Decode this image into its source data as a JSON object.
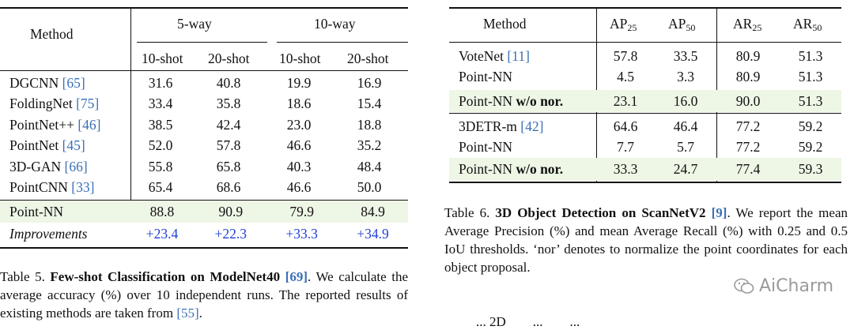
{
  "table5": {
    "header": {
      "method": "Method",
      "group1": "5-way",
      "group2": "10-way",
      "cols": [
        "10-shot",
        "20-shot",
        "10-shot",
        "20-shot"
      ]
    },
    "rows": [
      {
        "name": "DGCNN ",
        "cite": "[65]",
        "vals": [
          "31.6",
          "40.8",
          "19.9",
          "16.9"
        ]
      },
      {
        "name": "FoldingNet ",
        "cite": "[75]",
        "vals": [
          "33.4",
          "35.8",
          "18.6",
          "15.4"
        ]
      },
      {
        "name": "PointNet++ ",
        "cite": "[46]",
        "vals": [
          "38.5",
          "42.4",
          "23.0",
          "18.8"
        ]
      },
      {
        "name": "PointNet ",
        "cite": "[45]",
        "vals": [
          "52.0",
          "57.8",
          "46.6",
          "35.2"
        ]
      },
      {
        "name": "3D-GAN ",
        "cite": "[66]",
        "vals": [
          "55.8",
          "65.8",
          "40.3",
          "48.4"
        ]
      },
      {
        "name": "PointCNN ",
        "cite": "[33]",
        "vals": [
          "65.4",
          "68.6",
          "46.6",
          "50.0"
        ]
      }
    ],
    "highlight": {
      "name": "Point-NN",
      "vals": [
        "88.8",
        "90.9",
        "79.9",
        "84.9"
      ]
    },
    "improvements": {
      "name": "Improvements",
      "vals": [
        "+23.4",
        "+22.3",
        "+33.3",
        "+34.9"
      ]
    },
    "caption": {
      "prefix": "Table 5. ",
      "title": "Few-shot Classification on ModelNet40 ",
      "cite": "[69]",
      "rest": ". We calculate the average accuracy (%) over 10 independent runs. The reported results of existing methods are taken from  ",
      "cite2": "[55]",
      "end": "."
    }
  },
  "table6": {
    "header": {
      "method": "Method",
      "c1": "AP",
      "c1s": "25",
      "c2": "AP",
      "c2s": "50",
      "c3": "AR",
      "c3s": "25",
      "c4": "AR",
      "c4s": "50"
    },
    "group1": [
      {
        "name": "VoteNet ",
        "cite": "[11]",
        "vals": [
          "57.8",
          "33.5",
          "80.9",
          "51.3"
        ]
      },
      {
        "name": "Point-NN",
        "cite": "",
        "vals": [
          "4.5",
          "3.3",
          "80.9",
          "51.3"
        ]
      }
    ],
    "highlight1": {
      "name": "Point-NN ",
      "bold": "w/o nor.",
      "vals": [
        "23.1",
        "16.0",
        "90.0",
        "51.3"
      ]
    },
    "group2": [
      {
        "name": "3DETR-m ",
        "cite": "[42]",
        "vals": [
          "64.6",
          "46.4",
          "77.2",
          "59.2"
        ]
      },
      {
        "name": "Point-NN",
        "cite": "",
        "vals": [
          "7.7",
          "5.7",
          "77.2",
          "59.2"
        ]
      }
    ],
    "highlight2": {
      "name": "Point-NN ",
      "bold": "w/o nor.",
      "vals": [
        "33.3",
        "24.7",
        "77.4",
        "59.3"
      ]
    },
    "caption": {
      "prefix": "Table 6. ",
      "title": "3D Object Detection on ScanNetV2 ",
      "cite": "[9]",
      "rest": ". We report the mean Average Precision (%) and mean Average Recall (%) with 0.25 and 0.5 IoU thresholds. ‘nor’ denotes to normalize the point coordinates for each object proposal."
    }
  },
  "watermark": {
    "text": "AiCharm"
  },
  "bottom_fragment": {
    "text": "... 2D        ...        ..."
  }
}
